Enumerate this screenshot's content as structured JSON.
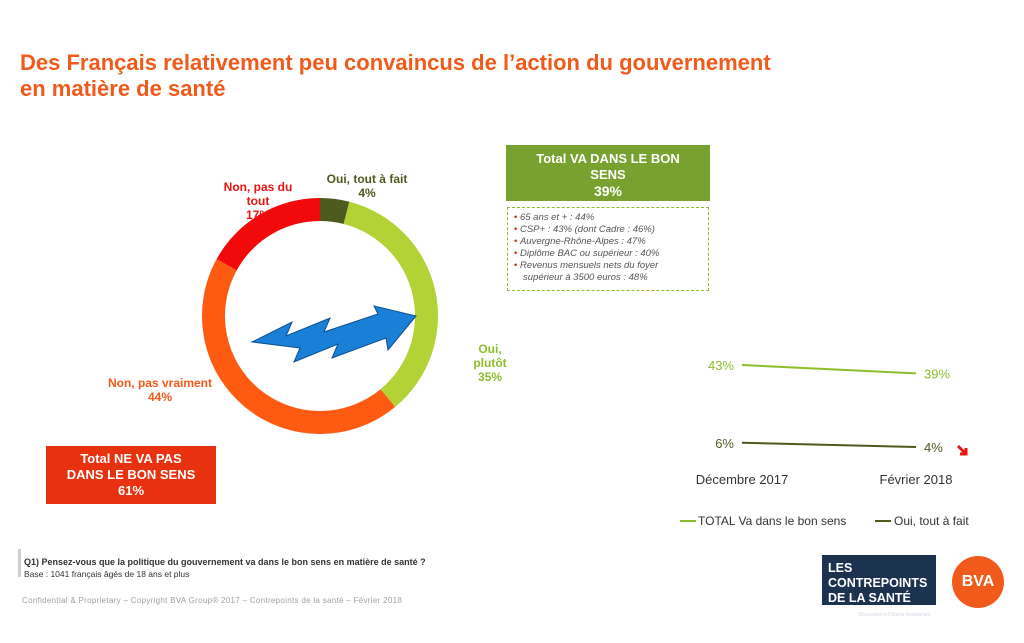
{
  "header": {
    "title_line1": "Des Français relativement peu convaincus de l’action du gouvernement",
    "title_line2": "en matière de santé"
  },
  "chart_data": [
    {
      "type": "pie",
      "categories": [
        "Oui, tout à fait",
        "Oui, plutôt",
        "Non, pas vraiment",
        "Non, pas du tout"
      ],
      "values": [
        4,
        35,
        44,
        17
      ],
      "colors": [
        "#4e5b1e",
        "#b2d235",
        "#ff5a12",
        "#f20a0a"
      ],
      "labels": {
        "tout_a_fait": {
          "name": "Oui, tout à fait",
          "value": "4%"
        },
        "plutot": {
          "name_l1": "Oui,",
          "name_l2": "plutôt",
          "value": "35%"
        },
        "pas_vraiment": {
          "name": "Non, pas vraiment",
          "value": "44%"
        },
        "pas_du_tout": {
          "name_l1": "Non, pas du",
          "name_l2": "tout",
          "value": "17%"
        }
      }
    },
    {
      "type": "line",
      "x": [
        "Décembre 2017",
        "Février 2018"
      ],
      "series": [
        {
          "name": "TOTAL Va dans le bon sens",
          "values": [
            43,
            39
          ],
          "color": "#8dbd2b"
        },
        {
          "name": "Oui, tout à fait",
          "values": [
            6,
            4
          ],
          "color": "#4e5b1e"
        }
      ],
      "value_labels": [
        [
          "43%",
          "39%"
        ],
        [
          "6%",
          "4%"
        ]
      ],
      "legend_position": "bottom",
      "trend_arrow_color": "#e8140f"
    }
  ],
  "total_oui": {
    "line1": "Total VA DANS LE BON",
    "line2": "SENS",
    "value": "39%",
    "details": [
      "65 ans et + : 44%",
      "CSP+ : 43% (dont Cadre : 46%)",
      "Auvergne-Rhône-Alpes : 47%",
      "Diplôme BAC ou supérieur : 40%",
      "Revenus mensuels nets du foyer",
      "supérieur à 3500 euros : 48%"
    ]
  },
  "total_non": {
    "line1": "Total NE VA PAS",
    "line2": "DANS LE BON SENS",
    "value": "61%"
  },
  "question": {
    "text": "Q1) Pensez-vous que la politique du gouvernement va dans le bon sens en matière de santé ?",
    "base": "Base : 1041 français âgés de 18 ans et plus"
  },
  "footer": "Confidential & Proprietary – Copyright BVA Group® 2017 – Contrepoints de la santé – Février 2018",
  "logos": {
    "contrepoints_l1": "LES CONTREPOINTS",
    "contrepoints_l2": "DE LA SANTÉ",
    "contrepoints_sub": "Discussion à l'Opéra Restaurant",
    "bva": "BVA"
  },
  "colors": {
    "accent_orange": "#f05a1a",
    "red": "#e8140f",
    "olive": "#78a22f",
    "light_green": "#8dbd2b",
    "dark_olive": "#4e5b1e",
    "arrow_blue": "#1a7fd6"
  }
}
